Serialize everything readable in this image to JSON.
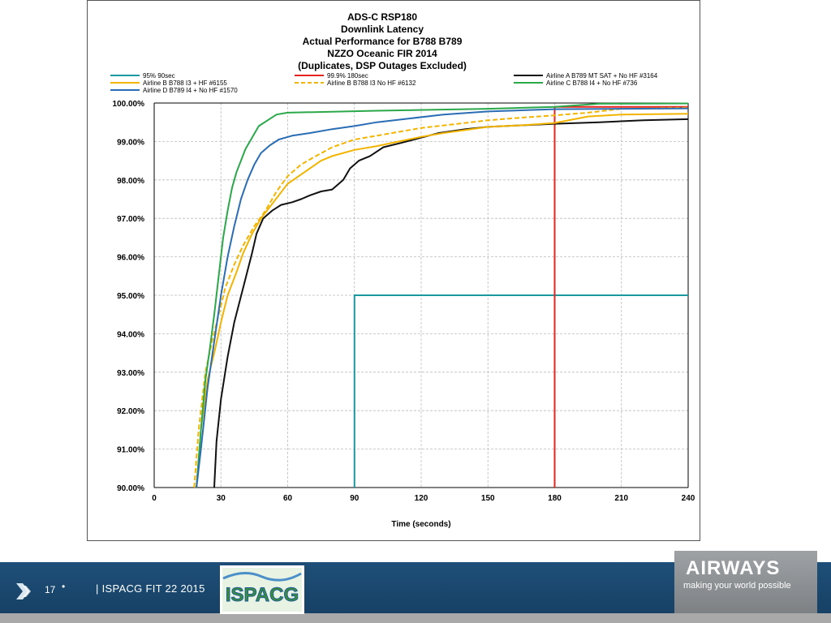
{
  "chart_data": {
    "type": "line",
    "title": [
      "ADS-C RSP180",
      "Downlink Latency",
      "Actual Performance for B788 B789",
      "NZZO Oceanic FIR 2014",
      "(Duplicates, DSP Outages Excluded)"
    ],
    "xlabel": "Time (seconds)",
    "ylabel": "",
    "xlim": [
      0,
      240
    ],
    "ylim": [
      90,
      100
    ],
    "x_ticks": [
      0,
      30,
      60,
      90,
      120,
      150,
      180,
      210,
      240
    ],
    "y_ticks": [
      "90.00%",
      "91.00%",
      "92.00%",
      "93.00%",
      "94.00%",
      "95.00%",
      "96.00%",
      "97.00%",
      "98.00%",
      "99.00%",
      "100.00%"
    ],
    "y_tick_values": [
      90,
      91,
      92,
      93,
      94,
      95,
      96,
      97,
      98,
      99,
      100
    ],
    "grid": true,
    "legend_position": "top",
    "series": [
      {
        "name": "95% 90sec",
        "color": "#1a9a9e",
        "dash": false,
        "points": [
          [
            90,
            90
          ],
          [
            90,
            95
          ],
          [
            240,
            95
          ]
        ]
      },
      {
        "name": "99.9% 180sec",
        "color": "#e8221c",
        "dash": false,
        "points": [
          [
            180,
            90
          ],
          [
            180,
            99.9
          ],
          [
            240,
            99.9
          ]
        ]
      },
      {
        "name": "Airline A B789 MT SAT + No HF #3164",
        "color": "#111111",
        "dash": false,
        "points": [
          [
            27,
            90
          ],
          [
            28,
            91.2
          ],
          [
            30,
            92.3
          ],
          [
            33,
            93.4
          ],
          [
            36,
            94.3
          ],
          [
            40,
            95.2
          ],
          [
            44,
            96.1
          ],
          [
            46,
            96.6
          ],
          [
            49,
            97.0
          ],
          [
            53,
            97.2
          ],
          [
            57,
            97.35
          ],
          [
            62,
            97.42
          ],
          [
            66,
            97.5
          ],
          [
            70,
            97.6
          ],
          [
            75,
            97.7
          ],
          [
            80,
            97.75
          ],
          [
            85,
            98.0
          ],
          [
            88,
            98.3
          ],
          [
            92,
            98.5
          ],
          [
            97,
            98.62
          ],
          [
            103,
            98.85
          ],
          [
            110,
            98.95
          ],
          [
            120,
            99.1
          ],
          [
            128,
            99.22
          ],
          [
            140,
            99.32
          ],
          [
            150,
            99.38
          ],
          [
            165,
            99.42
          ],
          [
            180,
            99.46
          ],
          [
            200,
            99.5
          ],
          [
            220,
            99.55
          ],
          [
            240,
            99.58
          ]
        ]
      },
      {
        "name": "Airline B B788 I3 + HF #6155",
        "color": "#f2b400",
        "dash": false,
        "points": [
          [
            19,
            90
          ],
          [
            21,
            91.5
          ],
          [
            24,
            92.8
          ],
          [
            27,
            93.5
          ],
          [
            30,
            94.3
          ],
          [
            33,
            95.0
          ],
          [
            37,
            95.6
          ],
          [
            40,
            96.1
          ],
          [
            44,
            96.6
          ],
          [
            48,
            97.0
          ],
          [
            52,
            97.3
          ],
          [
            56,
            97.6
          ],
          [
            60,
            97.9
          ],
          [
            65,
            98.1
          ],
          [
            70,
            98.3
          ],
          [
            75,
            98.5
          ],
          [
            80,
            98.62
          ],
          [
            90,
            98.78
          ],
          [
            100,
            98.88
          ],
          [
            110,
            99.0
          ],
          [
            120,
            99.12
          ],
          [
            130,
            99.22
          ],
          [
            140,
            99.3
          ],
          [
            150,
            99.38
          ],
          [
            165,
            99.42
          ],
          [
            180,
            99.48
          ],
          [
            195,
            99.65
          ],
          [
            210,
            99.7
          ],
          [
            240,
            99.72
          ]
        ]
      },
      {
        "name": "Airline B B788 I3 No HF #6132",
        "color": "#f2b400",
        "dash": true,
        "points": [
          [
            18,
            90
          ],
          [
            20,
            91.5
          ],
          [
            23,
            93.0
          ],
          [
            26,
            93.8
          ],
          [
            29,
            94.5
          ],
          [
            32,
            95.2
          ],
          [
            36,
            95.8
          ],
          [
            40,
            96.3
          ],
          [
            45,
            96.8
          ],
          [
            50,
            97.2
          ],
          [
            55,
            97.7
          ],
          [
            60,
            98.1
          ],
          [
            66,
            98.4
          ],
          [
            72,
            98.6
          ],
          [
            80,
            98.85
          ],
          [
            90,
            99.05
          ],
          [
            100,
            99.15
          ],
          [
            110,
            99.25
          ],
          [
            120,
            99.35
          ],
          [
            135,
            99.45
          ],
          [
            150,
            99.55
          ],
          [
            165,
            99.62
          ],
          [
            180,
            99.68
          ],
          [
            195,
            99.75
          ],
          [
            210,
            99.85
          ],
          [
            240,
            99.88
          ]
        ]
      },
      {
        "name": "Airline C B788 I4 + No HF #736",
        "color": "#2aa84a",
        "dash": false,
        "points": [
          [
            19,
            90
          ],
          [
            21,
            91.5
          ],
          [
            23,
            92.8
          ],
          [
            25,
            93.6
          ],
          [
            27,
            94.5
          ],
          [
            29,
            95.5
          ],
          [
            31,
            96.5
          ],
          [
            33,
            97.2
          ],
          [
            35,
            97.8
          ],
          [
            37,
            98.2
          ],
          [
            39,
            98.5
          ],
          [
            41,
            98.8
          ],
          [
            44,
            99.1
          ],
          [
            47,
            99.4
          ],
          [
            51,
            99.55
          ],
          [
            55,
            99.7
          ],
          [
            60,
            99.75
          ],
          [
            100,
            99.8
          ],
          [
            150,
            99.85
          ],
          [
            180,
            99.9
          ],
          [
            200,
            99.98
          ],
          [
            240,
            99.99
          ]
        ]
      },
      {
        "name": "Airline D B789 I4 + No HF #1570",
        "color": "#2a6db5",
        "dash": false,
        "points": [
          [
            19,
            90
          ],
          [
            21,
            91.0
          ],
          [
            24,
            92.6
          ],
          [
            27,
            93.8
          ],
          [
            30,
            95.0
          ],
          [
            33,
            96.0
          ],
          [
            36,
            96.8
          ],
          [
            39,
            97.5
          ],
          [
            42,
            98.0
          ],
          [
            45,
            98.4
          ],
          [
            48,
            98.7
          ],
          [
            52,
            98.9
          ],
          [
            56,
            99.05
          ],
          [
            62,
            99.15
          ],
          [
            70,
            99.22
          ],
          [
            80,
            99.32
          ],
          [
            90,
            99.4
          ],
          [
            100,
            99.5
          ],
          [
            115,
            99.6
          ],
          [
            130,
            99.7
          ],
          [
            150,
            99.78
          ],
          [
            170,
            99.82
          ],
          [
            180,
            99.84
          ],
          [
            240,
            99.86
          ]
        ]
      }
    ]
  },
  "footer": {
    "page_number": "17",
    "separator": "•",
    "text": "| ISPACG FIT 22 2015",
    "ispacg_logo_text": "ISPACG",
    "airways_name": "AIRWAYS",
    "airways_tagline": "making your world possible"
  }
}
